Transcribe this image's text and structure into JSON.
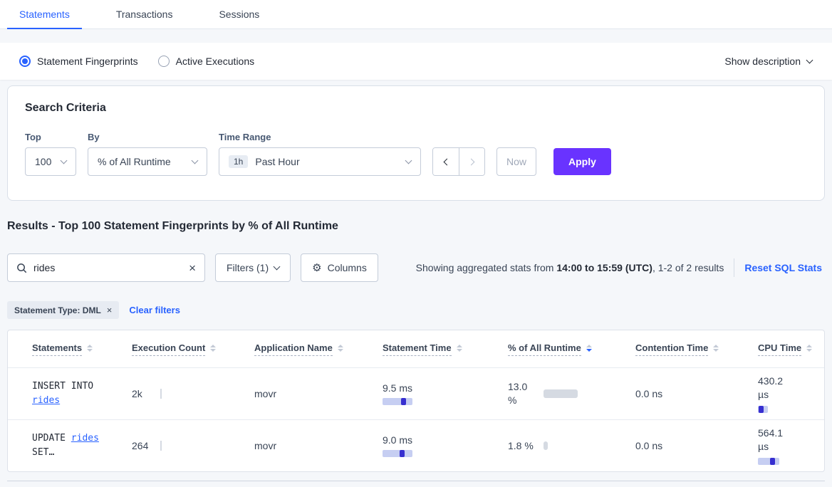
{
  "colors": {
    "accent_blue": "#2962ff",
    "primary_purple": "#6933ff",
    "bar_blue_light": "#c6cef2",
    "bar_blue_dark": "#372fd0",
    "bar_gray": "#d5dae2"
  },
  "tabs": {
    "items": [
      {
        "label": "Statements"
      },
      {
        "label": "Transactions"
      },
      {
        "label": "Sessions"
      }
    ]
  },
  "view_bar": {
    "fingerprints_label": "Statement Fingerprints",
    "active_exec_label": "Active Executions",
    "show_description": "Show description"
  },
  "search_criteria": {
    "title": "Search Criteria",
    "top_label": "Top",
    "top_value": "100",
    "by_label": "By",
    "by_value": "% of All Runtime",
    "time_range_label": "Time Range",
    "time_range_badge": "1h",
    "time_range_value": "Past Hour",
    "now_label": "Now",
    "apply_label": "Apply"
  },
  "results": {
    "heading": "Results - Top 100 Statement Fingerprints by % of All Runtime",
    "search_value": "rides",
    "filters_label": "Filters (1)",
    "columns_label": "Columns",
    "stats_prefix": "Showing aggregated stats from ",
    "stats_range": "14:00 to 15:59 (UTC)",
    "stats_suffix": ", 1-2 of 2 results",
    "reset_label": "Reset SQL Stats",
    "chip_label": "Statement Type: DML",
    "clear_filters_label": "Clear filters"
  },
  "table": {
    "headers": [
      "Statements",
      "Execution Count",
      "Application Name",
      "Statement Time",
      "% of All Runtime",
      "Contention Time",
      "CPU Time"
    ],
    "sorted_by": "% of All Runtime",
    "rows": [
      {
        "stmt_prefix": "INSERT INTO ",
        "stmt_link": "rides",
        "stmt_suffix": "",
        "exec_count": "2k",
        "app_name": "movr",
        "stmt_time": "9.5 ms",
        "stmt_time_bar": 42,
        "stmt_time_tick": 26,
        "pct_runtime": "13.0 %",
        "pct_bar": 48,
        "contention": "0.0 ns",
        "cpu_time": "430.2 µs",
        "cpu_bar": 14,
        "cpu_tick": 1
      },
      {
        "stmt_prefix": "UPDATE ",
        "stmt_link": "rides",
        "stmt_suffix": " SET…",
        "exec_count": "264",
        "app_name": "movr",
        "stmt_time": "9.0 ms",
        "stmt_time_bar": 42,
        "stmt_time_tick": 24,
        "pct_runtime": "1.8 %",
        "pct_bar": 6,
        "contention": "0.0 ns",
        "cpu_time": "564.1 µs",
        "cpu_bar": 30,
        "cpu_tick": 17
      }
    ]
  }
}
